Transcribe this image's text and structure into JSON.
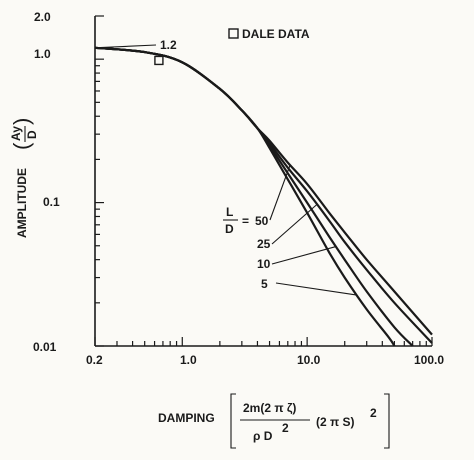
{
  "chart_data": {
    "type": "line",
    "xscale": "log",
    "yscale": "log",
    "xlim": [
      0.2,
      100.0
    ],
    "ylim": [
      0.01,
      2.0
    ],
    "x_ticks": [
      {
        "value": 0.2,
        "label": "0.2"
      },
      {
        "value": 1.0,
        "label": "1.0"
      },
      {
        "value": 10.0,
        "label": "10.0"
      },
      {
        "value": 100.0,
        "label": "100.0"
      }
    ],
    "y_ticks": [
      {
        "value": 0.01,
        "label": "0.01"
      },
      {
        "value": 0.1,
        "label": "0.1"
      },
      {
        "value": 1.0,
        "label": "1.0"
      },
      {
        "value": 2.0,
        "label": "2.0"
      }
    ],
    "xlabel": "DAMPING",
    "xlabel_formula": {
      "numerator": "2m(2 π ζ)",
      "denominator_base": "ρ D",
      "denominator_exp": "2",
      "factor_base": "(2 π S)",
      "factor_exp": "2"
    },
    "ylabel": "AMPLITUDE",
    "ylabel_fraction": {
      "numerator": "Ay",
      "denominator": "D"
    },
    "legend": {
      "label": "DALE DATA",
      "marker": "open-square",
      "position": "top-center"
    },
    "series_param": {
      "numerator": "L",
      "denominator": "D",
      "equals": "="
    },
    "series": [
      {
        "name": "50",
        "points": [
          [
            0.2,
            1.2
          ],
          [
            0.5,
            1.12
          ],
          [
            1.0,
            0.95
          ],
          [
            2.0,
            0.62
          ],
          [
            3.0,
            0.44
          ],
          [
            4.0,
            0.33
          ],
          [
            5.0,
            0.27
          ],
          [
            7.0,
            0.19
          ],
          [
            10.0,
            0.135
          ],
          [
            15.0,
            0.085
          ],
          [
            20.0,
            0.062
          ],
          [
            30.0,
            0.04
          ],
          [
            50.0,
            0.024
          ],
          [
            100.0,
            0.012
          ]
        ]
      },
      {
        "name": "25",
        "points": [
          [
            0.2,
            1.2
          ],
          [
            0.5,
            1.12
          ],
          [
            1.0,
            0.95
          ],
          [
            2.0,
            0.62
          ],
          [
            3.0,
            0.44
          ],
          [
            4.0,
            0.33
          ],
          [
            5.0,
            0.26
          ],
          [
            7.0,
            0.175
          ],
          [
            10.0,
            0.12
          ],
          [
            15.0,
            0.075
          ],
          [
            20.0,
            0.053
          ],
          [
            30.0,
            0.034
          ],
          [
            50.0,
            0.02
          ],
          [
            100.0,
            0.0105
          ]
        ]
      },
      {
        "name": "10",
        "points": [
          [
            0.2,
            1.2
          ],
          [
            0.5,
            1.12
          ],
          [
            1.0,
            0.95
          ],
          [
            2.0,
            0.62
          ],
          [
            3.0,
            0.44
          ],
          [
            4.0,
            0.33
          ],
          [
            5.0,
            0.25
          ],
          [
            7.0,
            0.16
          ],
          [
            10.0,
            0.1
          ],
          [
            15.0,
            0.058
          ],
          [
            20.0,
            0.04
          ],
          [
            30.0,
            0.024
          ],
          [
            50.0,
            0.0135
          ],
          [
            70.0,
            0.01
          ]
        ]
      },
      {
        "name": "5",
        "points": [
          [
            0.2,
            1.2
          ],
          [
            0.5,
            1.12
          ],
          [
            1.0,
            0.95
          ],
          [
            2.0,
            0.62
          ],
          [
            3.0,
            0.44
          ],
          [
            4.0,
            0.33
          ],
          [
            5.0,
            0.24
          ],
          [
            7.0,
            0.145
          ],
          [
            10.0,
            0.085
          ],
          [
            15.0,
            0.045
          ],
          [
            20.0,
            0.03
          ],
          [
            30.0,
            0.018
          ],
          [
            45.0,
            0.0115
          ],
          [
            50.0,
            0.01
          ]
        ]
      }
    ],
    "data_points": [
      {
        "x": 0.65,
        "y": 0.98,
        "label": "1.2"
      }
    ]
  }
}
